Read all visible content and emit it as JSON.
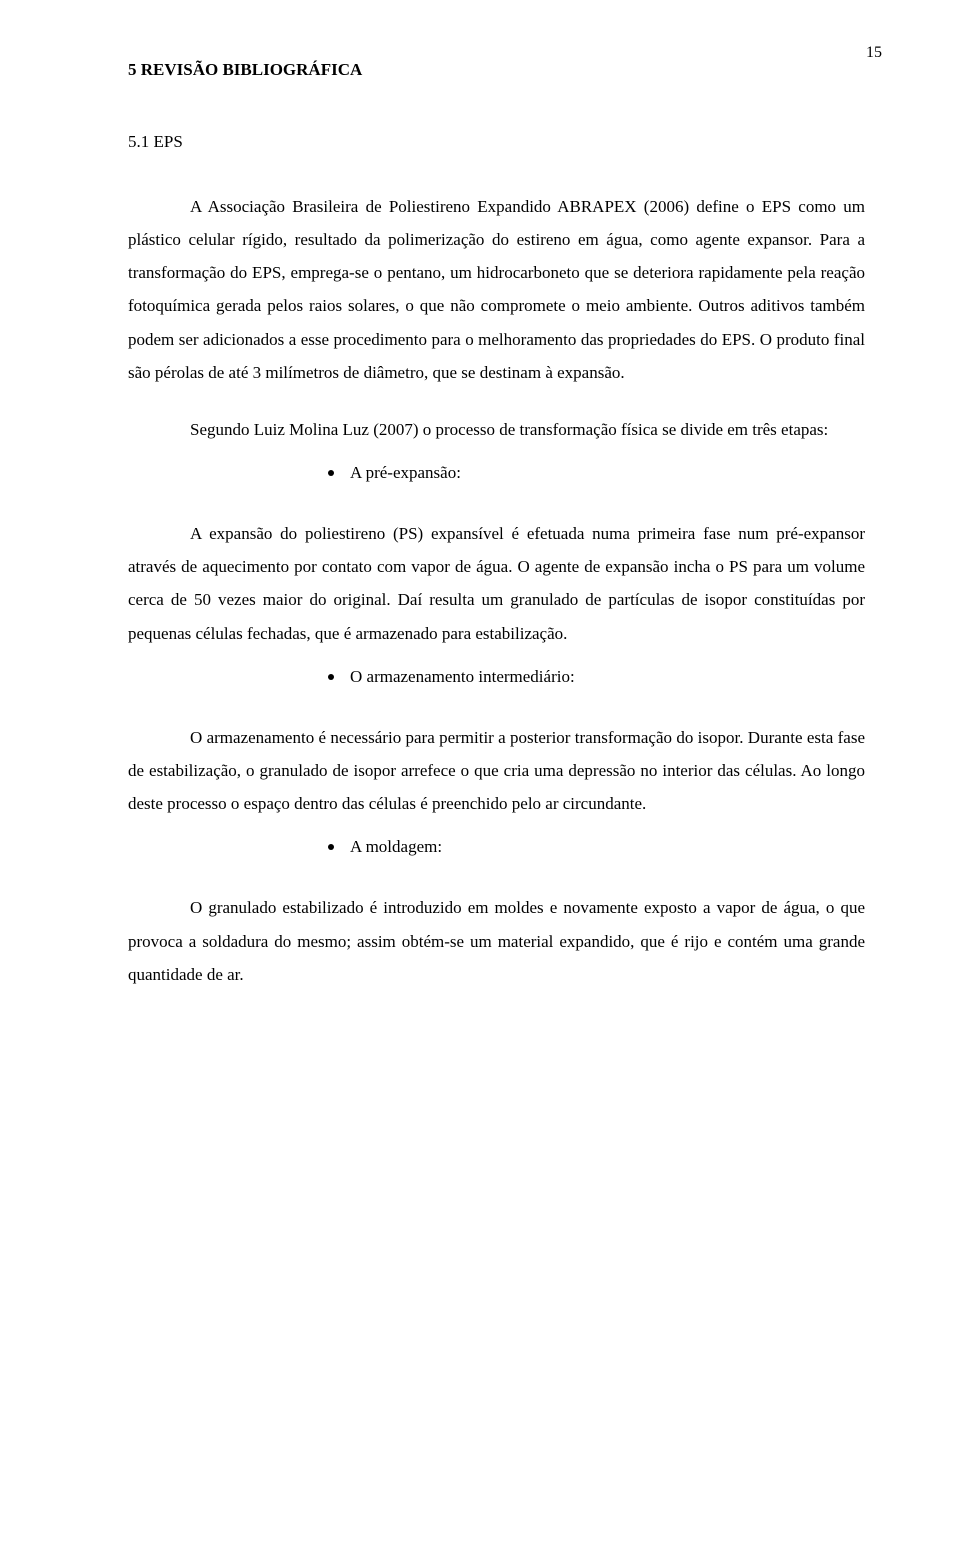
{
  "page_number": "15",
  "typography": {
    "font_family": "Times New Roman",
    "body_fontsize_pt": 12,
    "line_height": 1.95,
    "text_color": "#000000",
    "background_color": "#ffffff"
  },
  "heading": "5 REVISÃO BIBLIOGRÁFICA",
  "subheading": "5.1 EPS",
  "paragraphs": {
    "p1": "A Associação Brasileira de Poliestireno Expandido ABRAPEX (2006) define o EPS como um plástico celular rígido, resultado da polimerização do estireno em água, como agente expansor. Para a transformação do EPS, emprega-se o pentano, um hidrocarboneto que se deteriora rapidamente pela reação fotoquímica gerada pelos raios solares, o que não compromete o meio ambiente. Outros aditivos também podem ser adicionados a esse procedimento para o melhoramento das propriedades do EPS. O produto final são pérolas de até 3 milímetros de diâmetro, que se destinam à expansão.",
    "p2": "Segundo Luiz Molina Luz (2007) o processo de transformação física se divide em três etapas:",
    "p3": "A expansão do poliestireno (PS) expansível é efetuada numa primeira fase num pré-expansor através de aquecimento por contato com vapor de água. O agente de expansão incha o PS para um volume cerca de 50 vezes maior do original. Daí resulta um granulado de partículas de isopor constituídas por pequenas células fechadas, que é armazenado para estabilização.",
    "p4": "O armazenamento é necessário para permitir a posterior transformação do isopor. Durante esta fase de estabilização, o granulado de isopor arrefece o que cria uma depressão no interior das células. Ao longo deste processo o espaço dentro das células é preenchido pelo ar circundante.",
    "p5": "O granulado estabilizado é introduzido em moldes e novamente exposto a vapor de água, o que provoca a soldadura do mesmo; assim obtém-se um material expandido, que é rijo e contém uma grande quantidade de ar."
  },
  "bullets": {
    "b1": "A pré-expansão:",
    "b2": "O armazenamento intermediário:",
    "b3": "A moldagem:"
  }
}
